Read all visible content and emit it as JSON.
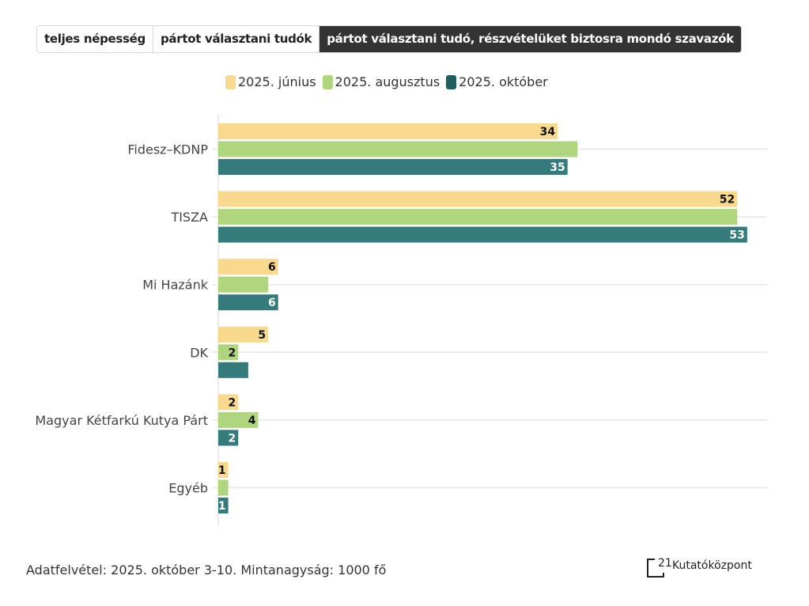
{
  "tabs": [
    {
      "label": "teljes népesség",
      "active": false
    },
    {
      "label": "pártot választani tudók",
      "active": false
    },
    {
      "label": "pártot választani tudó, részvételüket biztosra mondó szavazók",
      "active": true
    }
  ],
  "colors": {
    "june": "#f8d98e",
    "august": "#afd67f",
    "october": "#357b7b",
    "october_swatch": "#1d5e5e",
    "grid": "#e6e6e6"
  },
  "chart_data": {
    "type": "bar",
    "orientation": "horizontal",
    "title": "",
    "xlabel": "",
    "ylabel": "",
    "xlim": [
      0,
      55
    ],
    "grid": true,
    "legend_position": "top",
    "categories": [
      "Fidesz–KDNP",
      "TISZA",
      "Mi Hazánk",
      "DK",
      "Magyar Kétfarkú Kutya Párt",
      "Egyéb"
    ],
    "series": [
      {
        "name": "2025. június",
        "color_key": "june",
        "values": [
          34,
          52,
          6,
          5,
          2,
          1
        ],
        "labels": [
          "34",
          "52",
          "6",
          "5",
          "2",
          "1"
        ]
      },
      {
        "name": "2025. augusztus",
        "color_key": "august",
        "values": [
          36,
          52,
          5,
          2,
          4,
          1
        ],
        "labels": [
          "",
          "",
          "",
          "2",
          "4",
          ""
        ]
      },
      {
        "name": "2025. október",
        "color_key": "october",
        "values": [
          35,
          53,
          6,
          3,
          2,
          1
        ],
        "labels": [
          "35",
          "53",
          "6",
          "",
          "2",
          "1"
        ]
      }
    ]
  },
  "footer": {
    "note": "Adatfelvétel: 2025. október 3-10. Mintanagyság: 1000 fő"
  },
  "logo": {
    "number": "21",
    "name": "Kutatóközpont"
  }
}
